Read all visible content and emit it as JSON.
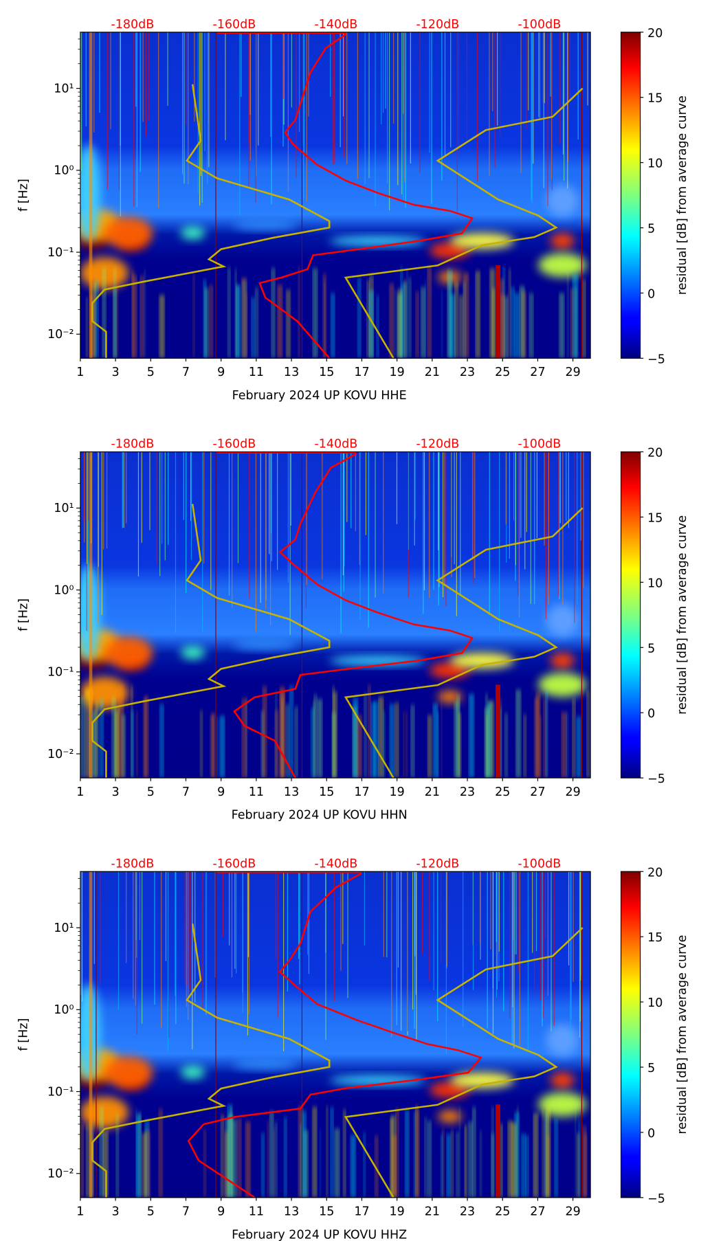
{
  "chart_data": [
    {
      "type": "heatmap",
      "title": "",
      "xlabel": "February 2024 UP KOVU  HHE",
      "ylabel": "f [Hz]",
      "colorbar_label": "residual [dB] from average curve",
      "colorbar_ticks": [
        "20",
        "15",
        "10",
        "5",
        "0",
        "−5"
      ],
      "colorbar_range": [
        -5,
        20
      ],
      "x_ticks": [
        "1",
        "3",
        "5",
        "7",
        "9",
        "11",
        "13",
        "15",
        "17",
        "19",
        "21",
        "23",
        "25",
        "27",
        "29"
      ],
      "xlim": [
        1,
        30
      ],
      "y_scale": "log",
      "y_ticks": [
        "10¹",
        "10⁰",
        "10⁻¹",
        "10⁻²"
      ],
      "ylim": [
        0.005,
        48
      ],
      "top_axis_ticks": [
        "-180dB",
        "-160dB",
        "-140dB",
        "-120dB",
        "-100dB"
      ],
      "red_curve_db_hz": [
        [
          -138,
          46
        ],
        [
          -142,
          31
        ],
        [
          -145,
          15.7
        ],
        [
          -147,
          6.4
        ],
        [
          -148,
          4.1
        ],
        [
          -150,
          2.9
        ],
        [
          -148.4,
          2.06
        ],
        [
          -143.7,
          1.17
        ],
        [
          -138.1,
          0.75
        ],
        [
          -131.8,
          0.53
        ],
        [
          -124.7,
          0.38
        ],
        [
          -117.6,
          0.32
        ],
        [
          -113.2,
          0.26
        ],
        [
          -115.2,
          0.17
        ],
        [
          -123.9,
          0.137
        ],
        [
          -135,
          0.11
        ],
        [
          -144.5,
          0.092
        ],
        [
          -145.6,
          0.062
        ],
        [
          -150.8,
          0.049
        ],
        [
          -155,
          0.042
        ],
        [
          -153.9,
          0.028
        ],
        [
          -147.6,
          0.0144
        ],
        [
          -141.3,
          0.0051
        ]
      ],
      "vertical_marker_days": [
        8.7,
        13.6,
        29.5
      ]
    },
    {
      "type": "heatmap",
      "xlabel": "February 2024 UP KOVU  HHN",
      "ylabel": "f [Hz]",
      "colorbar_label": "residual [dB] from average curve",
      "colorbar_ticks": [
        "20",
        "15",
        "10",
        "5",
        "0",
        "−5"
      ],
      "x_ticks": [
        "1",
        "3",
        "5",
        "7",
        "9",
        "11",
        "13",
        "15",
        "17",
        "19",
        "21",
        "23",
        "25",
        "27",
        "29"
      ],
      "y_ticks": [
        "10¹",
        "10⁰",
        "10⁻¹",
        "10⁻²"
      ],
      "top_axis_ticks": [
        "-180dB",
        "-160dB",
        "-140dB",
        "-120dB",
        "-100dB"
      ],
      "red_curve_db_hz": [
        [
          -136,
          46
        ],
        [
          -141,
          31
        ],
        [
          -144,
          15.7
        ],
        [
          -147,
          6.4
        ],
        [
          -148,
          4.1
        ],
        [
          -151,
          2.9
        ],
        [
          -148.4,
          2.06
        ],
        [
          -143.7,
          1.17
        ],
        [
          -138.1,
          0.75
        ],
        [
          -131.8,
          0.53
        ],
        [
          -124.7,
          0.38
        ],
        [
          -117.6,
          0.32
        ],
        [
          -113.2,
          0.26
        ],
        [
          -115.2,
          0.17
        ],
        [
          -123.9,
          0.137
        ],
        [
          -137,
          0.11
        ],
        [
          -147,
          0.092
        ],
        [
          -148,
          0.062
        ],
        [
          -156,
          0.049
        ],
        [
          -160,
          0.033
        ],
        [
          -158,
          0.022
        ],
        [
          -152,
          0.0144
        ],
        [
          -148,
          0.0051
        ]
      ],
      "vertical_marker_days": [
        8.7,
        13.6,
        29.5
      ]
    },
    {
      "type": "heatmap",
      "xlabel": "February 2024 UP KOVU  HHZ",
      "ylabel": "f [Hz]",
      "colorbar_label": "residual [dB] from average curve",
      "colorbar_ticks": [
        "20",
        "15",
        "10",
        "5",
        "0",
        "−5"
      ],
      "x_ticks": [
        "1",
        "3",
        "5",
        "7",
        "9",
        "11",
        "13",
        "15",
        "17",
        "19",
        "21",
        "23",
        "25",
        "27",
        "29"
      ],
      "y_ticks": [
        "10¹",
        "10⁰",
        "10⁻¹",
        "10⁻²"
      ],
      "top_axis_ticks": [
        "-180dB",
        "-160dB",
        "-140dB",
        "-120dB",
        "-100dB"
      ],
      "red_curve_db_hz": [
        [
          -135,
          46
        ],
        [
          -140,
          31
        ],
        [
          -145,
          15.7
        ],
        [
          -147,
          6.4
        ],
        [
          -149,
          4.1
        ],
        [
          -151,
          2.9
        ],
        [
          -148.4,
          2.06
        ],
        [
          -143.7,
          1.17
        ],
        [
          -136,
          0.75
        ],
        [
          -129,
          0.53
        ],
        [
          -122,
          0.38
        ],
        [
          -116,
          0.32
        ],
        [
          -111.5,
          0.26
        ],
        [
          -114,
          0.17
        ],
        [
          -125,
          0.137
        ],
        [
          -138,
          0.11
        ],
        [
          -145,
          0.092
        ],
        [
          -147,
          0.062
        ],
        [
          -160,
          0.049
        ],
        [
          -166,
          0.04
        ],
        [
          -169,
          0.025
        ],
        [
          -167,
          0.0144
        ],
        [
          -156,
          0.0051
        ]
      ],
      "vertical_marker_days": [
        1.9,
        8.7,
        13.6,
        29.5
      ]
    }
  ],
  "yellow_curves_db_hz": [
    [
      [
        -168.2,
        11.2
      ],
      [
        -166.6,
        2.3
      ],
      [
        -169.3,
        1.31
      ],
      [
        -163.4,
        0.8
      ],
      [
        -149.2,
        0.44
      ],
      [
        -141.3,
        0.24
      ],
      [
        -141.3,
        0.2
      ],
      [
        -152.4,
        0.15
      ],
      [
        -162.6,
        0.109
      ],
      [
        -165,
        0.082
      ],
      [
        -162.1,
        0.067
      ],
      [
        -177.6,
        0.044
      ],
      [
        -185.5,
        0.035
      ],
      [
        -187.9,
        0.024
      ],
      [
        -187.9,
        0.0144
      ],
      [
        -185.2,
        0.0107
      ],
      [
        -185.2,
        0.0051
      ]
    ],
    [
      [
        -91.5,
        10
      ],
      [
        -97.4,
        4.5
      ],
      [
        -110.5,
        3.1
      ],
      [
        -120,
        1.31
      ],
      [
        -108.1,
        0.44
      ],
      [
        -100.2,
        0.28
      ],
      [
        -96.7,
        0.2
      ],
      [
        -101,
        0.153
      ],
      [
        -111.3,
        0.122
      ],
      [
        -120,
        0.069
      ],
      [
        -138.1,
        0.049
      ],
      [
        -128.7,
        0.0051
      ]
    ]
  ],
  "colors": {
    "red_curve": "#ff0000",
    "yellow_curve": "#c8b400",
    "marker_line": "#8b0000",
    "top_axis_text": "#ff0000"
  }
}
